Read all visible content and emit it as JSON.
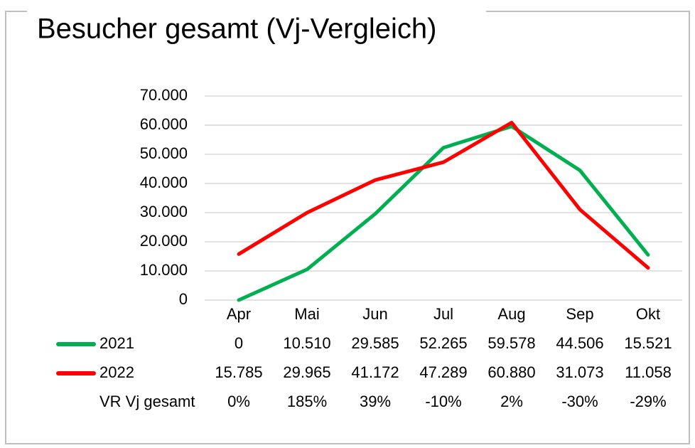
{
  "chart_data": {
    "type": "line",
    "title": "Besucher gesamt (Vj-Vergleich)",
    "categories": [
      "Apr",
      "Mai",
      "Jun",
      "Jul",
      "Aug",
      "Sep",
      "Okt"
    ],
    "ylim": [
      0,
      70000
    ],
    "y_ticks": [
      0,
      10000,
      20000,
      30000,
      40000,
      50000,
      60000,
      70000
    ],
    "y_tick_labels": [
      "0",
      "10.000",
      "20.000",
      "30.000",
      "40.000",
      "50.000",
      "60.000",
      "70.000"
    ],
    "grid": true,
    "legend": "data-table-below",
    "series": [
      {
        "name": "2021",
        "color": "#00b050",
        "values": [
          0,
          10510,
          29585,
          52265,
          59578,
          44506,
          15521
        ],
        "labels": [
          "0",
          "10.510",
          "29.585",
          "52.265",
          "59.578",
          "44.506",
          "15.521"
        ]
      },
      {
        "name": "2022",
        "color": "#ff0000",
        "values": [
          15785,
          29965,
          41172,
          47289,
          60880,
          31073,
          11058
        ],
        "labels": [
          "15.785",
          "29.965",
          "41.172",
          "47.289",
          "60.880",
          "31.073",
          "11.058"
        ]
      }
    ],
    "table_rows": [
      {
        "name": "VR Vj gesamt",
        "values": [
          "0%",
          "185%",
          "39%",
          "-10%",
          "2%",
          "-30%",
          "-29%"
        ]
      }
    ]
  }
}
